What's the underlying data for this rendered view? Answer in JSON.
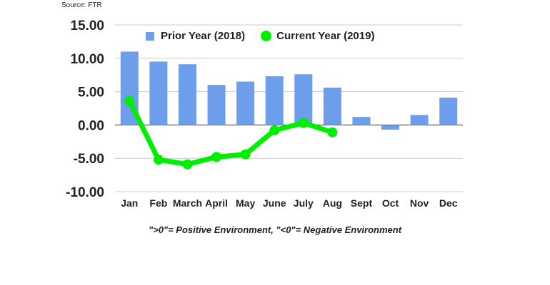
{
  "source_note": "Source: FTR",
  "caption": "\">0\"= Positive Environment, \"<0\"= Negative Environment",
  "colors": {
    "bar": "#6d9eeb",
    "line": "#00ee00",
    "grid": "#cccccc",
    "zero": "#333333",
    "text": "#222222"
  },
  "chart_data": {
    "type": "bar",
    "title": "",
    "xlabel": "",
    "ylabel": "",
    "categories": [
      "Jan",
      "Feb",
      "March",
      "April",
      "May",
      "June",
      "July",
      "Aug",
      "Sept",
      "Oct",
      "Nov",
      "Dec"
    ],
    "ylim": [
      -10,
      15
    ],
    "yticks": [
      "15.00",
      "10.00",
      "5.00",
      "0.00",
      "-5.00",
      "-10.00"
    ],
    "ytick_values": [
      15,
      10,
      5,
      0,
      -5,
      -10
    ],
    "legend": "top",
    "grid": true,
    "series": [
      {
        "name": "Prior Year (2018)",
        "type": "bar",
        "values": [
          11.0,
          9.5,
          9.1,
          6.0,
          6.5,
          7.3,
          7.6,
          5.6,
          1.2,
          -0.7,
          1.5,
          4.1
        ]
      },
      {
        "name": "Current Year (2019)",
        "type": "line",
        "values": [
          3.6,
          -5.2,
          -5.9,
          -4.8,
          -4.4,
          -0.8,
          0.3,
          -1.1,
          null,
          null,
          null,
          null
        ]
      }
    ]
  }
}
